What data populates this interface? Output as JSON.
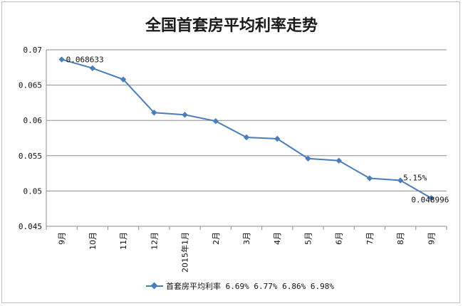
{
  "chart_data": {
    "type": "line",
    "title": "全国首套房平均利率走势",
    "xlabel": "",
    "ylabel": "",
    "categories": [
      "9月",
      "10月",
      "11月",
      "12月",
      "2015年1月",
      "2月",
      "3月",
      "4月",
      "5月",
      "6月",
      "7月",
      "8月",
      "9月"
    ],
    "ylim": [
      0.045,
      0.07
    ],
    "yticks": [
      0.045,
      0.05,
      0.055,
      0.06,
      0.065,
      0.07
    ],
    "ytick_labels": [
      "0.045",
      "0.05",
      "0.055",
      "0.06",
      "0.065",
      "0.07"
    ],
    "grid": true,
    "legend_position": "bottom",
    "series": [
      {
        "name": "首套房平均利率 6.69% 6.77% 6.86% 6.98%",
        "color": "#4a7ebb",
        "values": [
          0.068633,
          0.0674,
          0.0658,
          0.0611,
          0.0608,
          0.0599,
          0.0576,
          0.0574,
          0.0546,
          0.0543,
          0.0518,
          0.0515,
          0.048996
        ]
      }
    ],
    "annotations": [
      {
        "index": 0,
        "text": "0.068633"
      },
      {
        "index": 11,
        "text": "5.15%"
      },
      {
        "index": 12,
        "text": "0.048996"
      }
    ]
  }
}
